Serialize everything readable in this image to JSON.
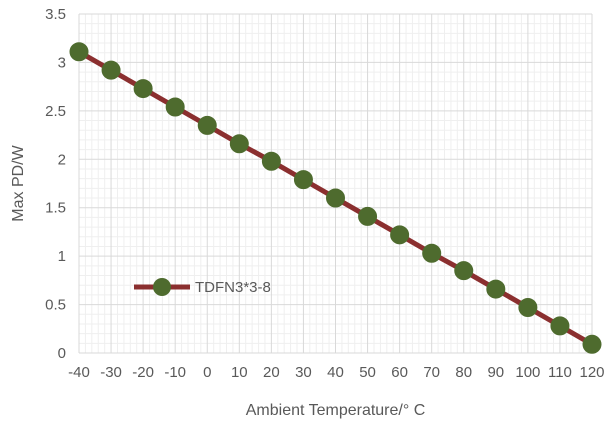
{
  "chart_data": {
    "type": "line",
    "xlabel": "Ambient Temperature/° C",
    "ylabel": "Max PD/W",
    "xlim": [
      -40,
      120
    ],
    "ylim": [
      0,
      3.5
    ],
    "x_ticks": [
      -40,
      -30,
      -20,
      -10,
      0,
      10,
      20,
      30,
      40,
      50,
      60,
      70,
      80,
      90,
      100,
      110,
      120
    ],
    "y_ticks": [
      0,
      0.5,
      1,
      1.5,
      2,
      2.5,
      3,
      3.5
    ],
    "y_tick_labels": [
      "0",
      "0.5",
      "1",
      "1.5",
      "2",
      "2.5",
      "3",
      "3.5"
    ],
    "grid": true,
    "minor_grid": true,
    "legend_position": "inside-lower-left",
    "series": [
      {
        "name": "TDFN3*3-8",
        "line_color": "#8B2F2F",
        "marker_color": "#4E6B2E",
        "x": [
          -40,
          -30,
          -20,
          -10,
          0,
          10,
          20,
          30,
          40,
          50,
          60,
          70,
          80,
          90,
          100,
          110,
          120
        ],
        "y": [
          3.11,
          2.92,
          2.73,
          2.54,
          2.35,
          2.16,
          1.98,
          1.79,
          1.6,
          1.41,
          1.22,
          1.03,
          0.85,
          0.66,
          0.47,
          0.28,
          0.09
        ]
      }
    ]
  }
}
